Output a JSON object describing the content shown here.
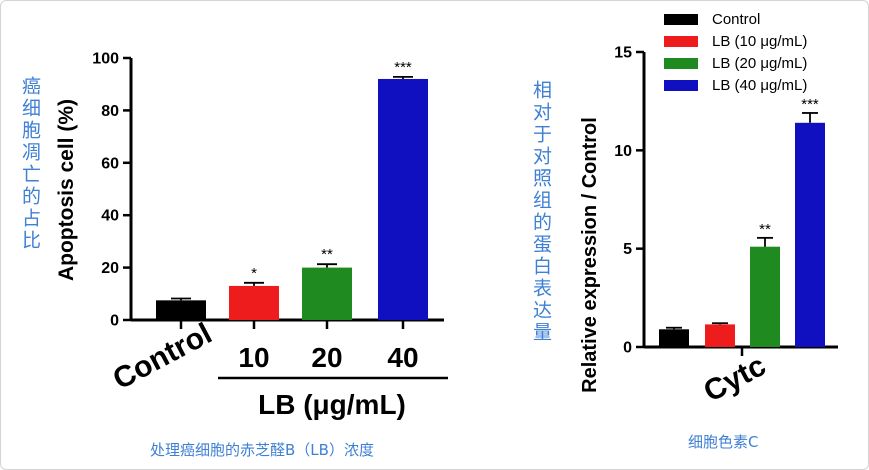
{
  "notes": {
    "left_side": "癌细胞凋亡的占比",
    "left_caption": "处理癌细胞的赤芝醛B（LB）浓度",
    "right_side": "相对于对照组的蛋白表达量",
    "right_caption": "细胞色素C"
  },
  "colors": {
    "control": "#000000",
    "lb10": "#ee1c1c",
    "lb20": "#1f8a1f",
    "lb40": "#1010c0",
    "note": "#3f80d4"
  },
  "chart_data": [
    {
      "type": "bar",
      "ylabel": "Apoptosis cell (%)",
      "xlabel": "LB (μg/mL)",
      "ylim": [
        0,
        100
      ],
      "yticks": [
        "0",
        "20",
        "40",
        "60",
        "80",
        "100"
      ],
      "categories": [
        "Control",
        "10",
        "20",
        "40"
      ],
      "values": [
        7.5,
        13,
        20,
        92
      ],
      "errors": [
        0.7,
        1.2,
        1.3,
        0.8
      ],
      "significance": [
        "",
        "*",
        "**",
        "***"
      ]
    },
    {
      "type": "bar",
      "ylabel": "Relative expression / Control",
      "ylim": [
        0,
        15
      ],
      "yticks": [
        "0",
        "5",
        "10",
        "15"
      ],
      "categories": [
        "Cytc"
      ],
      "series": [
        {
          "name": "Control",
          "values": [
            0.9
          ],
          "errors": [
            0.08
          ],
          "significance": ""
        },
        {
          "name": "LB (10 μg/mL)",
          "values": [
            1.15
          ],
          "errors": [
            0.06
          ],
          "significance": ""
        },
        {
          "name": "LB (20 μg/mL)",
          "values": [
            5.1
          ],
          "errors": [
            0.45
          ],
          "significance": "**"
        },
        {
          "name": "LB (40 μg/mL)",
          "values": [
            11.4
          ],
          "errors": [
            0.5
          ],
          "significance": "***"
        }
      ],
      "legend": "top-right"
    }
  ]
}
